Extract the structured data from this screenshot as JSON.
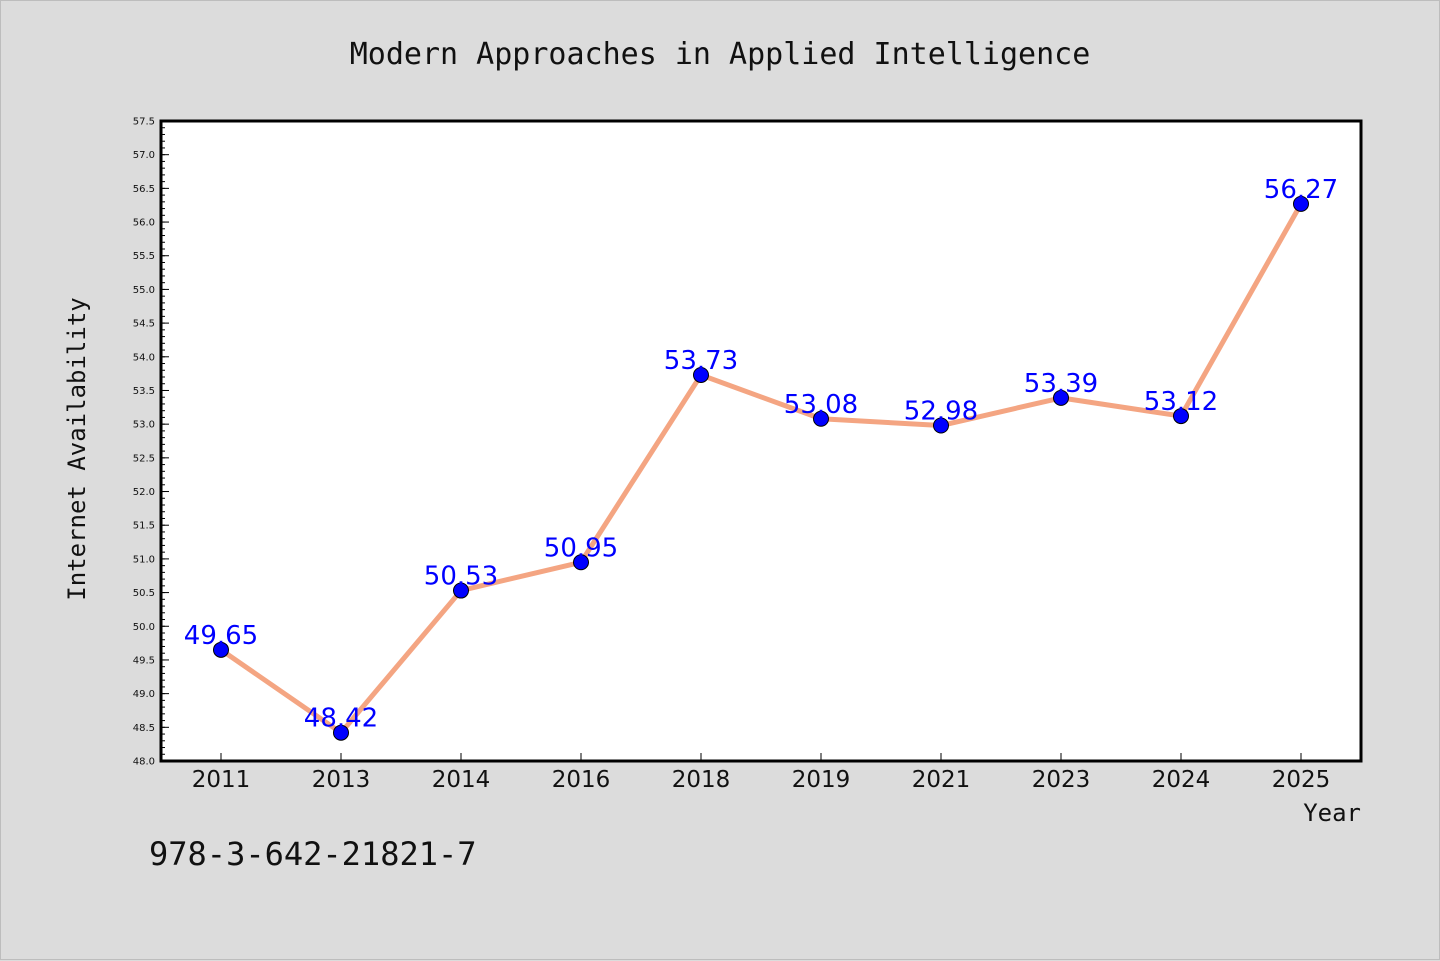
{
  "chart_data": {
    "type": "line",
    "title": "Modern Approaches in Applied Intelligence",
    "xlabel": "Year",
    "ylabel": "Internet Availability",
    "categories": [
      "2011",
      "2013",
      "2014",
      "2016",
      "2018",
      "2019",
      "2021",
      "2023",
      "2024",
      "2025"
    ],
    "series": [
      {
        "values": [
          49.65,
          48.42,
          50.53,
          50.95,
          53.73,
          53.08,
          52.98,
          53.39,
          53.12,
          56.27
        ],
        "line_color": "#f4a582",
        "marker_color": "#0000ff"
      }
    ],
    "data_labels": [
      "49.65",
      "48.42",
      "50.53",
      "50.95",
      "53.73",
      "53.08",
      "52.98",
      "53.39",
      "53.12",
      "56.27"
    ],
    "ylim": [
      48.0,
      57.5
    ],
    "yticks": [
      "48.0",
      "48.5",
      "49.0",
      "49.5",
      "50.0",
      "50.5",
      "51.0",
      "51.5",
      "52.0",
      "52.5",
      "53.0",
      "53.5",
      "54.0",
      "54.5",
      "55.0",
      "55.5",
      "56.0",
      "56.5",
      "57.0",
      "57.5"
    ],
    "grid": false,
    "label_color": "#0000ff"
  },
  "footer": {
    "isbn": "978-3-642-21821-7"
  }
}
